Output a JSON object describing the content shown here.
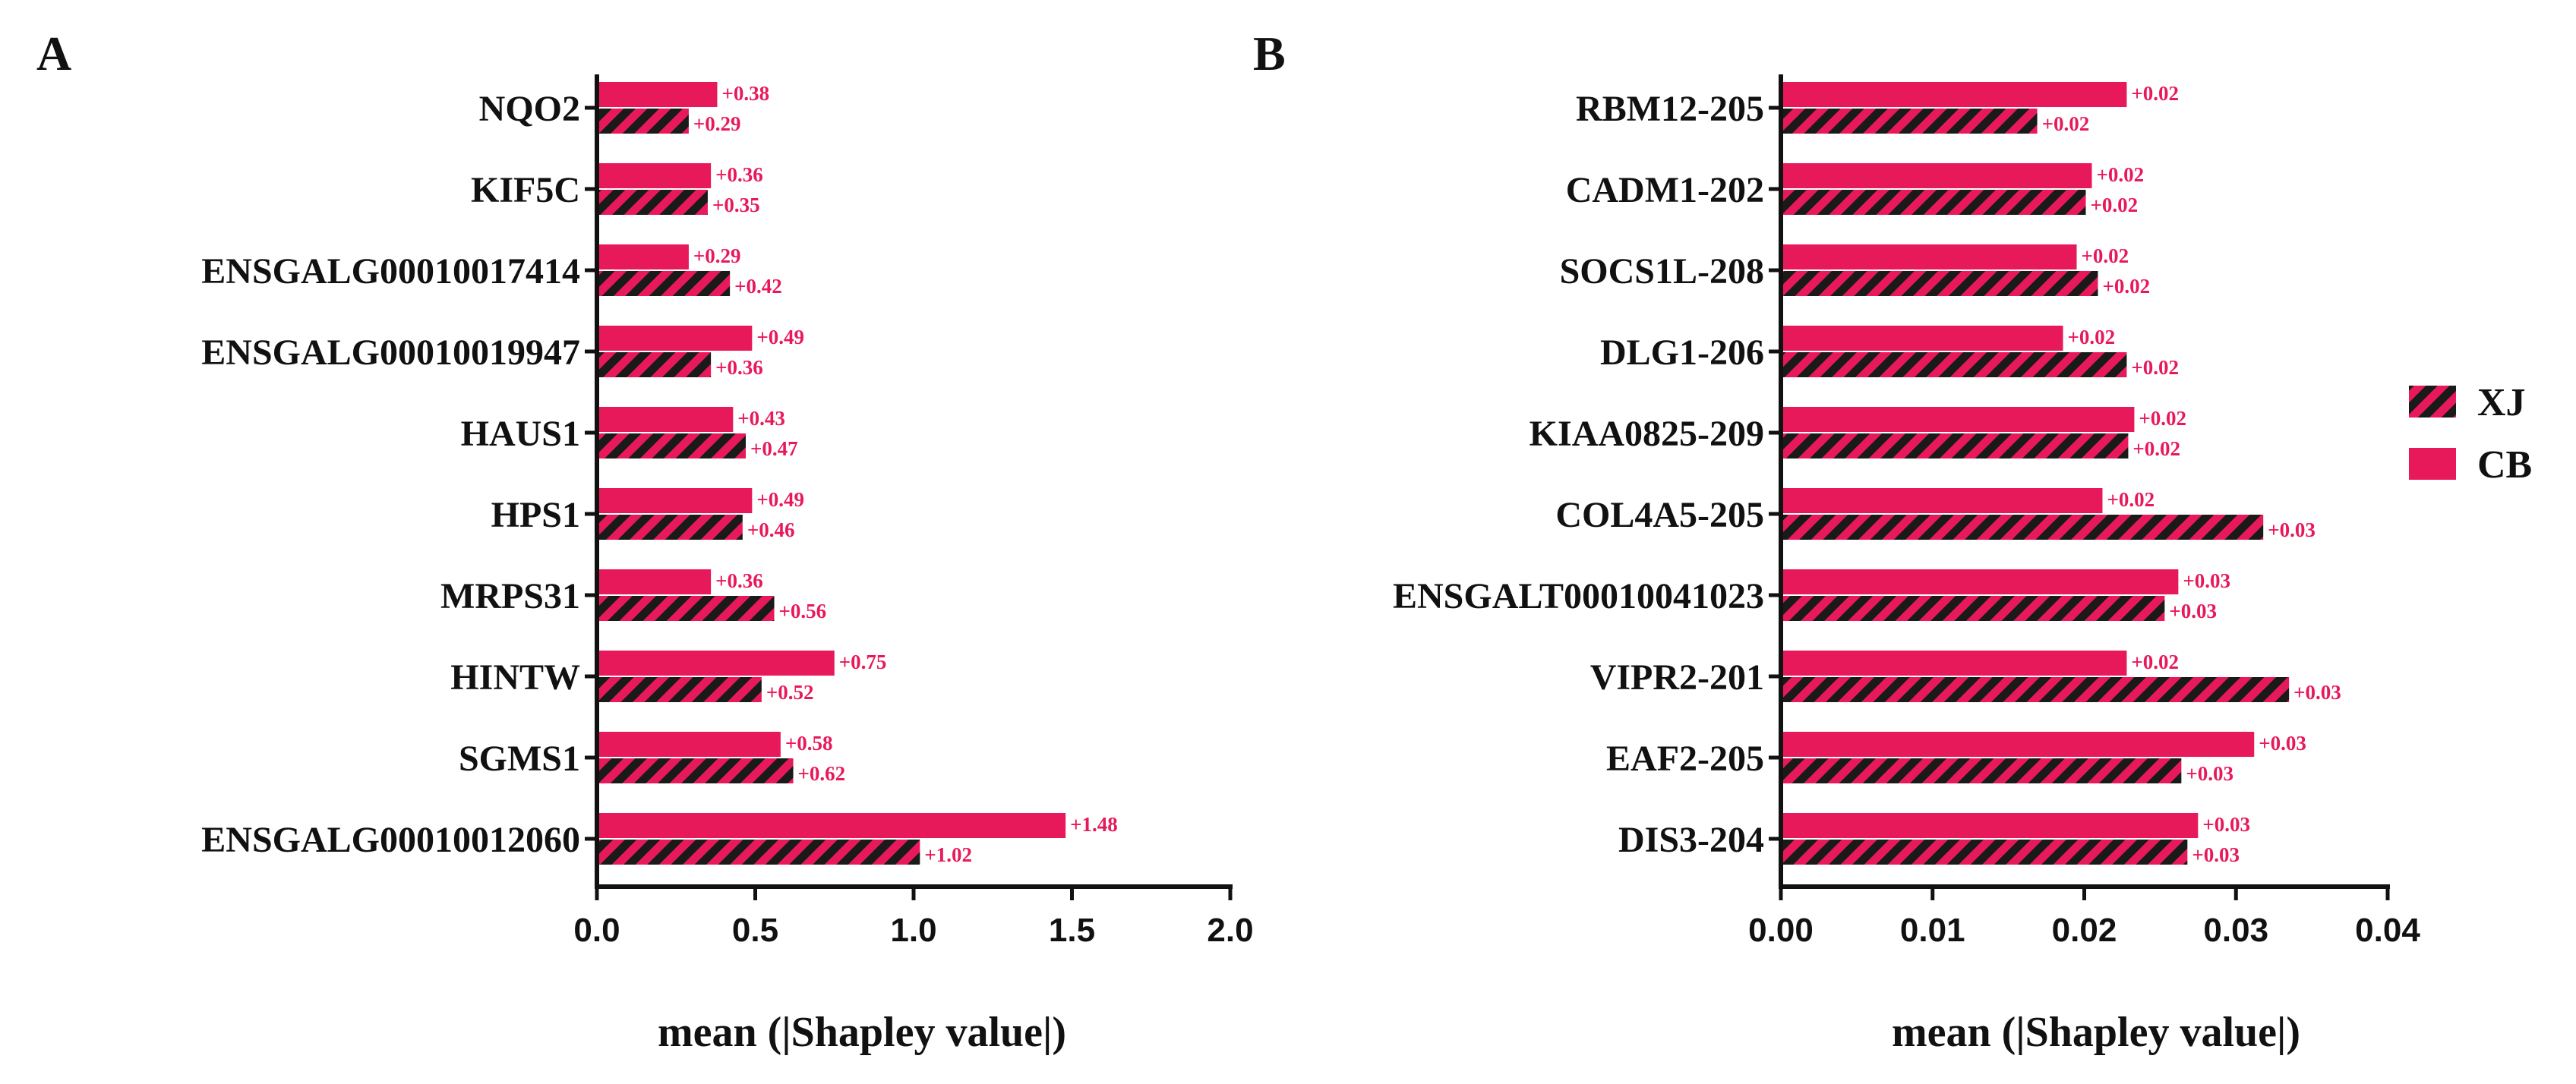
{
  "colors": {
    "cb": "#e8195a",
    "xj": "#e8195a",
    "hatch": "#1a1a1a",
    "axis": "#111111"
  },
  "legend": {
    "items": [
      {
        "key": "xj",
        "label": "XJ",
        "pattern": "hatched"
      },
      {
        "key": "cb",
        "label": "CB",
        "pattern": "solid"
      }
    ]
  },
  "chart_data": [
    {
      "panel": "A",
      "type": "bar",
      "orientation": "horizontal",
      "xlabel": "mean (|Shapley value|)",
      "xlim": [
        0,
        2.0
      ],
      "ticks": [
        0.0,
        0.5,
        1.0,
        1.5,
        2.0
      ],
      "tick_labels": [
        "0.0",
        "0.5",
        "1.0",
        "1.5",
        "2.0"
      ],
      "categories": [
        "NQO2",
        "KIF5C",
        "ENSGALG00010017414",
        "ENSGALG00010019947",
        "HAUS1",
        "HPS1",
        "MRPS31",
        "HINTW",
        "SGMS1",
        "ENSGALG00010012060"
      ],
      "series": [
        {
          "name": "CB",
          "values": [
            0.38,
            0.36,
            0.29,
            0.49,
            0.43,
            0.49,
            0.36,
            0.75,
            0.58,
            1.48
          ],
          "labels": [
            "+0.38",
            "+0.36",
            "+0.29",
            "+0.49",
            "+0.43",
            "+0.49",
            "+0.36",
            "+0.75",
            "+0.58",
            "+1.48"
          ]
        },
        {
          "name": "XJ",
          "values": [
            0.29,
            0.35,
            0.42,
            0.36,
            0.47,
            0.46,
            0.56,
            0.52,
            0.62,
            1.02
          ],
          "labels": [
            "+0.29",
            "+0.35",
            "+0.42",
            "+0.36",
            "+0.47",
            "+0.46",
            "+0.56",
            "+0.52",
            "+0.62",
            "+1.02"
          ]
        }
      ]
    },
    {
      "panel": "B",
      "type": "bar",
      "orientation": "horizontal",
      "xlabel": "mean (|Shapley value|)",
      "xlim": [
        0,
        0.04
      ],
      "ticks": [
        0.0,
        0.01,
        0.02,
        0.03,
        0.04
      ],
      "tick_labels": [
        "0.00",
        "0.01",
        "0.02",
        "0.03",
        "0.04"
      ],
      "categories": [
        "RBM12-205",
        "CADM1-202",
        "SOCS1L-208",
        "DLG1-206",
        "KIAA0825-209",
        "COL4A5-205",
        "ENSGALT00010041023",
        "VIPR2-201",
        "EAF2-205",
        "DIS3-204"
      ],
      "series": [
        {
          "name": "CB",
          "values": [
            0.0228,
            0.0205,
            0.0195,
            0.0186,
            0.0233,
            0.0212,
            0.0262,
            0.0228,
            0.0312,
            0.0275
          ],
          "labels": [
            "+0.02",
            "+0.02",
            "+0.02",
            "+0.02",
            "+0.02",
            "+0.02",
            "+0.03",
            "+0.02",
            "+0.03",
            "+0.03"
          ]
        },
        {
          "name": "XJ",
          "values": [
            0.0169,
            0.0201,
            0.0209,
            0.0228,
            0.0229,
            0.0318,
            0.0253,
            0.0335,
            0.0264,
            0.0268
          ],
          "labels": [
            "+0.02",
            "+0.02",
            "+0.02",
            "+0.02",
            "+0.02",
            "+0.03",
            "+0.03",
            "+0.03",
            "+0.03",
            "+0.03"
          ]
        }
      ]
    }
  ]
}
